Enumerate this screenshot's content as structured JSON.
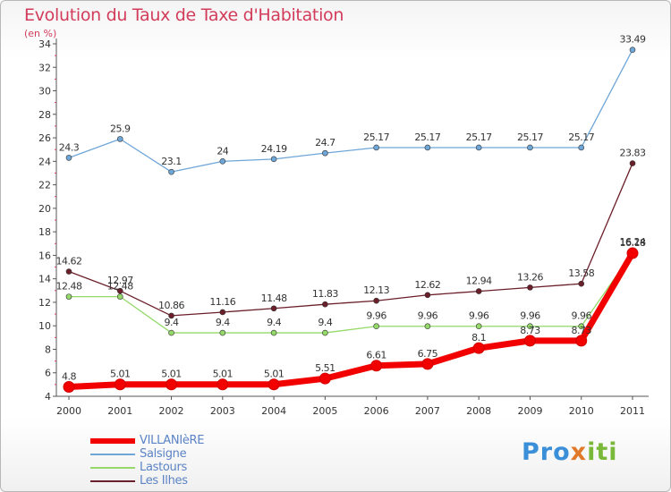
{
  "title": "Evolution du Taux de Taxe d'Habitation",
  "subtitle": "(en %)",
  "logo": [
    "Pro",
    "x",
    "iti"
  ],
  "chart_data": {
    "type": "line",
    "title": "Evolution du Taux de Taxe d'Habitation",
    "ylabel": "(en %)",
    "xlabel": "",
    "x": [
      "2000",
      "2001",
      "2002",
      "2003",
      "2004",
      "2005",
      "2006",
      "2007",
      "2008",
      "2009",
      "2010",
      "2011"
    ],
    "ylim": [
      4,
      34
    ],
    "yticks": [
      "4",
      "6",
      "8",
      "10",
      "12",
      "14",
      "16",
      "18",
      "20",
      "22",
      "24",
      "26",
      "28",
      "30",
      "32",
      "34"
    ],
    "grid": false,
    "legend_position": "bottom-left",
    "series": [
      {
        "name": "Les Ilhes",
        "color": "#6b1f2a",
        "values": [
          14.62,
          12.97,
          10.86,
          11.16,
          11.48,
          11.83,
          12.13,
          12.62,
          12.94,
          13.26,
          13.58,
          23.83
        ],
        "labels": [
          "14.62",
          "12.97",
          "10.86",
          "11.16",
          "11.48",
          "11.83",
          "12.13",
          "12.62",
          "12.94",
          "13.26",
          "13.58",
          "23.83"
        ]
      },
      {
        "name": "Lastours",
        "color": "#94d96a",
        "values": [
          12.48,
          12.48,
          9.4,
          9.4,
          9.4,
          9.4,
          9.96,
          9.96,
          9.96,
          9.96,
          9.96,
          16.24
        ],
        "labels": [
          "12.48",
          "12.48",
          "9.4",
          "9.4",
          "9.4",
          "9.4",
          "9.96",
          "9.96",
          "9.96",
          "9.96",
          "9.96",
          "16.24"
        ]
      },
      {
        "name": "Salsigne",
        "color": "#6ea6d8",
        "values": [
          24.3,
          25.9,
          23.1,
          24,
          24.19,
          24.7,
          25.17,
          25.17,
          25.17,
          25.17,
          25.17,
          33.49
        ],
        "labels": [
          "24.3",
          "25.9",
          "23.1",
          "24",
          "24.19",
          "24.7",
          "25.17",
          "25.17",
          "25.17",
          "25.17",
          "25.17",
          "33.49"
        ]
      },
      {
        "name": "VILLANIèRE",
        "color": "#f20000",
        "values": [
          4.8,
          5.01,
          5.01,
          5.01,
          5.01,
          5.51,
          6.61,
          6.75,
          8.1,
          8.73,
          8.73,
          16.18
        ],
        "labels": [
          "4.8",
          "5.01",
          "5.01",
          "5.01",
          "5.01",
          "5.51",
          "6.61",
          "6.75",
          "8.1",
          "8.73",
          "8.73",
          "16.18"
        ]
      }
    ]
  },
  "legend": [
    {
      "label": "VILLANIèRE",
      "color": "#f20000"
    },
    {
      "label": "Salsigne",
      "color": "#6ea6d8"
    },
    {
      "label": "Lastours",
      "color": "#94d96a"
    },
    {
      "label": "Les Ilhes",
      "color": "#6b1f2a"
    }
  ]
}
